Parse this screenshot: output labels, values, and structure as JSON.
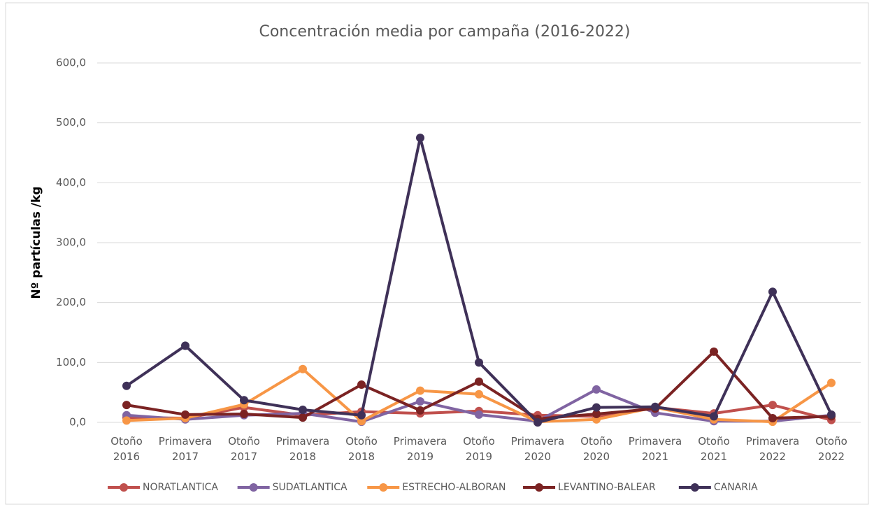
{
  "chart_data": {
    "type": "line",
    "title": "Concentración media por campaña (2016-2022)",
    "y_label": "Nº partículas /kg",
    "categories": [
      "Otoño 2016",
      "Primavera 2017",
      "Otoño 2017",
      "Primavera 2018",
      "Otoño 2018",
      "Primavera 2019",
      "Otoño 2019",
      "Primavera 2020",
      "Otoño 2020",
      "Primavera 2021",
      "Otoño 2021",
      "Primavera 2022",
      "Otoño 2022"
    ],
    "series": [
      {
        "name": "NORATLANTICA",
        "color": "#c0504d",
        "values": [
          8,
          7,
          25,
          12,
          18,
          15,
          19,
          12,
          10,
          25,
          15,
          29,
          4
        ]
      },
      {
        "name": "SUDATLANTICA",
        "color": "#8064a2",
        "values": [
          12,
          5,
          12,
          15,
          1,
          35,
          13,
          2,
          55,
          16,
          2,
          2,
          12
        ]
      },
      {
        "name": "ESTRECHO-ALBORAN",
        "color": "#f79646",
        "values": [
          3,
          7,
          30,
          89,
          2,
          53,
          47,
          1,
          5,
          25,
          5,
          1,
          66
        ]
      },
      {
        "name": "LEVANTINO-BALEAR",
        "color": "#7b2323",
        "values": [
          29,
          13,
          14,
          8,
          63,
          20,
          68,
          6,
          14,
          23,
          118,
          7,
          10
        ]
      },
      {
        "name": "CANARIA",
        "color": "#3f3158",
        "values": [
          61,
          128,
          37,
          21,
          12,
          475,
          100,
          0,
          25,
          26,
          10,
          218,
          13
        ]
      }
    ],
    "ylim": [
      0,
      600
    ],
    "yticks": [
      {
        "value": 0,
        "label": "0,0"
      },
      {
        "value": 100,
        "label": "100,0"
      },
      {
        "value": 200,
        "label": "200,0"
      },
      {
        "value": 300,
        "label": "300,0"
      },
      {
        "value": 400,
        "label": "400,0"
      },
      {
        "value": 500,
        "label": "500,0"
      },
      {
        "value": 600,
        "label": "600,0"
      }
    ],
    "grid": true,
    "legend": "bottom"
  }
}
